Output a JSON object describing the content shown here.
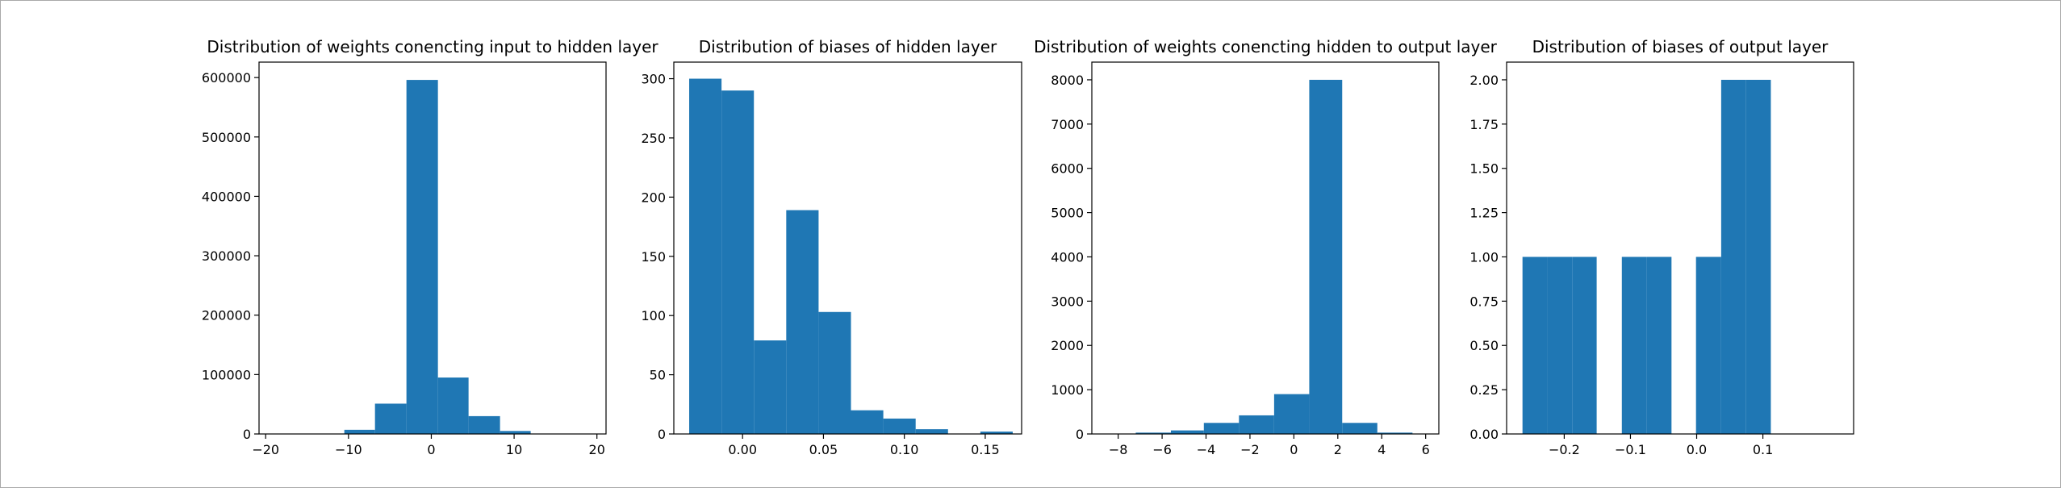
{
  "colors": {
    "bar": "#1f77b4",
    "axes": "#000000",
    "background": "#ffffff"
  },
  "chart_data": [
    {
      "type": "bar",
      "title": "Distribution of weights conencting input to hidden layer",
      "xlabel": "",
      "ylabel": "",
      "xlim": [
        -20.8,
        21.1
      ],
      "ylim": [
        0,
        626000
      ],
      "xticks": [
        -20,
        -10,
        0,
        10,
        20
      ],
      "xtick_labels": [
        "−20",
        "−10",
        "0",
        "10",
        "20"
      ],
      "yticks": [
        0,
        100000,
        200000,
        300000,
        400000,
        500000,
        600000
      ],
      "ytick_labels": [
        "0",
        "100000",
        "200000",
        "300000",
        "400000",
        "500000",
        "600000"
      ],
      "bins": [
        {
          "x0": -10.5,
          "x1": -6.8,
          "count": 7000
        },
        {
          "x0": -6.8,
          "x1": -3.0,
          "count": 51000
        },
        {
          "x0": -3.0,
          "x1": 0.8,
          "count": 596000
        },
        {
          "x0": 0.8,
          "x1": 4.5,
          "count": 95000
        },
        {
          "x0": 4.5,
          "x1": 8.3,
          "count": 30000
        },
        {
          "x0": 8.3,
          "x1": 12.0,
          "count": 5000
        }
      ]
    },
    {
      "type": "bar",
      "title": "Distribution of biases of hidden layer",
      "xlabel": "",
      "ylabel": "",
      "xlim": [
        -0.0425,
        0.1725
      ],
      "ylim": [
        0,
        314
      ],
      "xticks": [
        0.0,
        0.05,
        0.1,
        0.15
      ],
      "xtick_labels": [
        "0.00",
        "0.05",
        "0.10",
        "0.15"
      ],
      "yticks": [
        0,
        50,
        100,
        150,
        200,
        250,
        300
      ],
      "ytick_labels": [
        "0",
        "50",
        "100",
        "150",
        "200",
        "250",
        "300"
      ],
      "bins": [
        {
          "x0": -0.033,
          "x1": -0.013,
          "count": 300
        },
        {
          "x0": -0.013,
          "x1": 0.007,
          "count": 290
        },
        {
          "x0": 0.007,
          "x1": 0.027,
          "count": 79
        },
        {
          "x0": 0.027,
          "x1": 0.047,
          "count": 189
        },
        {
          "x0": 0.047,
          "x1": 0.067,
          "count": 103
        },
        {
          "x0": 0.067,
          "x1": 0.087,
          "count": 20
        },
        {
          "x0": 0.087,
          "x1": 0.107,
          "count": 13
        },
        {
          "x0": 0.107,
          "x1": 0.127,
          "count": 4
        },
        {
          "x0": 0.127,
          "x1": 0.147,
          "count": 0
        },
        {
          "x0": 0.147,
          "x1": 0.167,
          "count": 2
        }
      ]
    },
    {
      "type": "bar",
      "title": "Distribution of weights conencting hidden to output layer",
      "xlabel": "",
      "ylabel": "",
      "xlim": [
        -9.2,
        6.6
      ],
      "ylim": [
        0,
        8400
      ],
      "xticks": [
        -8,
        -6,
        -4,
        -2,
        0,
        2,
        4,
        6
      ],
      "xtick_labels": [
        "−8",
        "−6",
        "−4",
        "−2",
        "0",
        "2",
        "4",
        "6"
      ],
      "yticks": [
        0,
        1000,
        2000,
        3000,
        4000,
        5000,
        6000,
        7000,
        8000
      ],
      "ytick_labels": [
        "0",
        "1000",
        "2000",
        "3000",
        "4000",
        "5000",
        "6000",
        "7000",
        "8000"
      ],
      "bins": [
        {
          "x0": -7.2,
          "x1": -5.6,
          "count": 30
        },
        {
          "x0": -5.6,
          "x1": -4.1,
          "count": 80
        },
        {
          "x0": -4.1,
          "x1": -2.5,
          "count": 250
        },
        {
          "x0": -2.5,
          "x1": -0.9,
          "count": 420
        },
        {
          "x0": -0.9,
          "x1": 0.7,
          "count": 900
        },
        {
          "x0": 0.7,
          "x1": 2.2,
          "count": 8000
        },
        {
          "x0": 2.2,
          "x1": 3.8,
          "count": 250
        },
        {
          "x0": 3.8,
          "x1": 5.4,
          "count": 30
        }
      ]
    },
    {
      "type": "bar",
      "title": "Distribution of biases of output layer",
      "xlabel": "",
      "ylabel": "",
      "xlim": [
        -0.287,
        0.237
      ],
      "ylim": [
        0,
        2.1
      ],
      "xticks": [
        -0.2,
        -0.1,
        0.0,
        0.1
      ],
      "xtick_labels": [
        "−0.2",
        "−0.1",
        "0.0",
        "0.1"
      ],
      "yticks": [
        0,
        0.25,
        0.5,
        0.75,
        1.0,
        1.25,
        1.5,
        1.75,
        2.0
      ],
      "ytick_labels": [
        "0.00",
        "0.25",
        "0.50",
        "0.75",
        "1.00",
        "1.25",
        "1.50",
        "1.75",
        "2.00"
      ],
      "bins": [
        {
          "x0": -0.263,
          "x1": -0.226,
          "count": 1
        },
        {
          "x0": -0.226,
          "x1": -0.188,
          "count": 1
        },
        {
          "x0": -0.188,
          "x1": -0.151,
          "count": 1
        },
        {
          "x0": -0.151,
          "x1": -0.113,
          "count": 0
        },
        {
          "x0": -0.113,
          "x1": -0.076,
          "count": 1
        },
        {
          "x0": -0.076,
          "x1": -0.038,
          "count": 1
        },
        {
          "x0": -0.038,
          "x1": -0.001,
          "count": 0
        },
        {
          "x0": -0.001,
          "x1": 0.037,
          "count": 1
        },
        {
          "x0": 0.037,
          "x1": 0.074,
          "count": 2
        },
        {
          "x0": 0.074,
          "x1": 0.112,
          "count": 2
        }
      ]
    }
  ]
}
